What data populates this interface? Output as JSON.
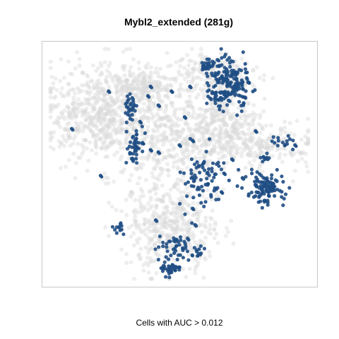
{
  "chart_data": {
    "type": "scatter",
    "title": "Mybl2_extended (281g)",
    "xlabel": "Cells with AUC > 0.012",
    "ylabel": "",
    "grid": false,
    "legend": "none",
    "axis_ticks": false,
    "xlim": [
      0,
      100
    ],
    "ylim": [
      0,
      100
    ],
    "colors": {
      "background_cells": "#d9d9d9",
      "selected_cells": "#1f4e84",
      "frame": "#c8c8c8"
    },
    "background_clusters": [
      {
        "cx": 20,
        "cy": 72,
        "sx": 11,
        "sy": 10,
        "n": 650
      },
      {
        "cx": 45,
        "cy": 62,
        "sx": 10,
        "sy": 13,
        "n": 450
      },
      {
        "cx": 47,
        "cy": 23,
        "sx": 9,
        "sy": 10,
        "n": 450
      },
      {
        "cx": 66,
        "cy": 68,
        "sx": 7,
        "sy": 7,
        "n": 250
      },
      {
        "cx": 80,
        "cy": 58,
        "sx": 12,
        "sy": 5,
        "n": 250
      },
      {
        "cx": 66,
        "cy": 88,
        "sx": 7,
        "sy": 4,
        "n": 160
      },
      {
        "cx": 38,
        "cy": 84,
        "sx": 8,
        "sy": 4,
        "n": 160
      }
    ],
    "selected_clusters": [
      {
        "cx": 69,
        "cy": 84,
        "sx": 4.0,
        "sy": 5.0,
        "n": 170
      },
      {
        "cx": 61,
        "cy": 92,
        "sx": 1.5,
        "sy": 1.0,
        "n": 25
      },
      {
        "cx": 82,
        "cy": 40,
        "sx": 3.5,
        "sy": 3.0,
        "n": 110
      },
      {
        "cx": 59,
        "cy": 44,
        "sx": 4.0,
        "sy": 6.0,
        "n": 75
      },
      {
        "cx": 33,
        "cy": 57,
        "sx": 1.5,
        "sy": 4.0,
        "n": 45
      },
      {
        "cx": 31,
        "cy": 74,
        "sx": 1.2,
        "sy": 2.5,
        "n": 30
      },
      {
        "cx": 48,
        "cy": 15,
        "sx": 3.5,
        "sy": 4.0,
        "n": 50
      },
      {
        "cx": 46,
        "cy": 5,
        "sx": 2.0,
        "sy": 1.5,
        "n": 35
      },
      {
        "cx": 27,
        "cy": 22,
        "sx": 1.0,
        "sy": 1.5,
        "n": 12
      },
      {
        "cx": 57,
        "cy": 13,
        "sx": 1.5,
        "sy": 1.5,
        "n": 12
      },
      {
        "cx": 89,
        "cy": 60,
        "sx": 2.5,
        "sy": 1.5,
        "n": 15
      },
      {
        "cx": 64,
        "cy": 79,
        "sx": 2.0,
        "sy": 2.0,
        "n": 20
      },
      {
        "cx": 83,
        "cy": 52,
        "sx": 1.0,
        "sy": 1.0,
        "n": 10
      }
    ],
    "selected_singletons": [
      [
        23,
        81
      ],
      [
        9,
        65
      ],
      [
        39,
        56
      ],
      [
        47,
        81
      ],
      [
        39,
        83
      ],
      [
        52,
        70
      ],
      [
        42,
        55
      ],
      [
        74,
        44
      ],
      [
        66,
        38
      ],
      [
        67,
        46
      ],
      [
        54,
        83
      ],
      [
        55,
        60
      ],
      [
        50,
        58
      ],
      [
        20,
        45
      ],
      [
        70,
        52
      ],
      [
        79,
        64
      ],
      [
        59,
        91
      ],
      [
        82,
        53
      ],
      [
        94,
        58
      ],
      [
        55,
        31
      ],
      [
        41,
        26
      ],
      [
        38,
        79
      ],
      [
        35,
        68
      ],
      [
        56,
        24
      ],
      [
        42,
        75
      ],
      [
        36,
        59
      ]
    ]
  }
}
